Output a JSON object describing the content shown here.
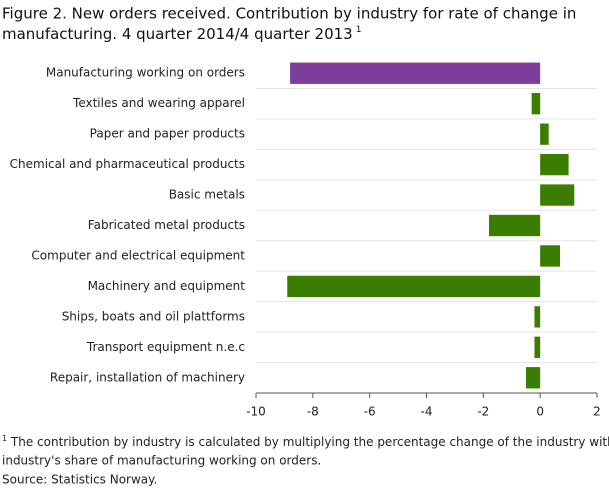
{
  "chart_data": {
    "type": "hbar",
    "title_lines": [
      "Figure 2. New orders received. Contribution by industry for rate of change in",
      "manufacturing. 4 quarter 2014/4 quarter 2013"
    ],
    "title_note_marker": "1",
    "categories": [
      "Manufacturing working on orders",
      "Textiles and wearing apparel",
      "Paper and paper products",
      "Chemical and pharmaceutical products",
      "Basic metals",
      "Fabricated metal products",
      "Computer and electrical equipment",
      "Machinery and equipment",
      "Ships, boats and oil plattforms",
      "Transport equipment n.e.c",
      "Repair, installation of machinery"
    ],
    "values": [
      -8.8,
      -0.3,
      0.3,
      1.0,
      1.2,
      -1.8,
      0.7,
      -8.9,
      -0.2,
      -0.2,
      -0.5
    ],
    "colors": [
      "#7e3c9d",
      "#3a7d00",
      "#3a7d00",
      "#3a7d00",
      "#3a7d00",
      "#3a7d00",
      "#3a7d00",
      "#3a7d00",
      "#3a7d00",
      "#3a7d00",
      "#3a7d00"
    ],
    "xlim": [
      -10,
      2
    ],
    "xticks": [
      -10,
      -8,
      -6,
      -4,
      -2,
      0,
      2
    ],
    "footnote_marker": "1",
    "footnote_lines": [
      " The contribution  by industry is calculated by multiplying  the percentage change of the industry with the",
      "industry's share of manufacturing working on orders."
    ],
    "source": "Source: Statistics Norway."
  }
}
